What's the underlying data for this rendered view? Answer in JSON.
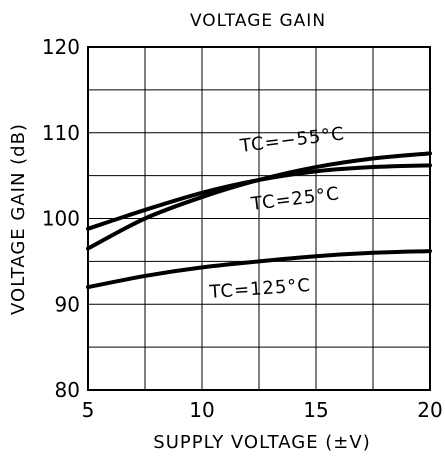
{
  "chart_data": {
    "type": "line",
    "title": "VOLTAGE GAIN",
    "xlabel": "SUPPLY VOLTAGE (±V)",
    "ylabel": "VOLTAGE GAIN (dB)",
    "xlim": [
      5,
      20
    ],
    "ylim": [
      80,
      120
    ],
    "x_ticks": [
      5,
      10,
      15,
      20
    ],
    "x_tick_labels": [
      "5",
      "10",
      "15",
      "20"
    ],
    "y_ticks": [
      80,
      90,
      100,
      110,
      120
    ],
    "y_tick_labels": [
      "80",
      "90",
      "100",
      "110",
      "120"
    ],
    "grid": true,
    "series": [
      {
        "name": "TC=−55°C",
        "x": [
          5,
          7.5,
          10,
          12.5,
          15,
          17.5,
          20
        ],
        "y": [
          98.8,
          101.0,
          103.0,
          104.5,
          105.5,
          106.0,
          106.2
        ]
      },
      {
        "name": "TC=25°C",
        "x": [
          5,
          7.5,
          10,
          12.5,
          15,
          17.5,
          20
        ],
        "y": [
          96.5,
          100.0,
          102.5,
          104.5,
          106.0,
          107.0,
          107.6
        ]
      },
      {
        "name": "TC=125°C",
        "x": [
          5,
          7.5,
          10,
          12.5,
          15,
          17.5,
          20
        ],
        "y": [
          92.0,
          93.3,
          94.3,
          95.0,
          95.6,
          96.0,
          96.2
        ]
      }
    ],
    "annotations": [
      {
        "text": "TC=−55°C",
        "series": 0
      },
      {
        "text": "TC=25°C",
        "series": 1
      },
      {
        "text": "TC=125°C",
        "series": 2
      }
    ],
    "colors": {
      "line": "#000000",
      "grid": "#000000",
      "background": "#ffffff"
    }
  }
}
